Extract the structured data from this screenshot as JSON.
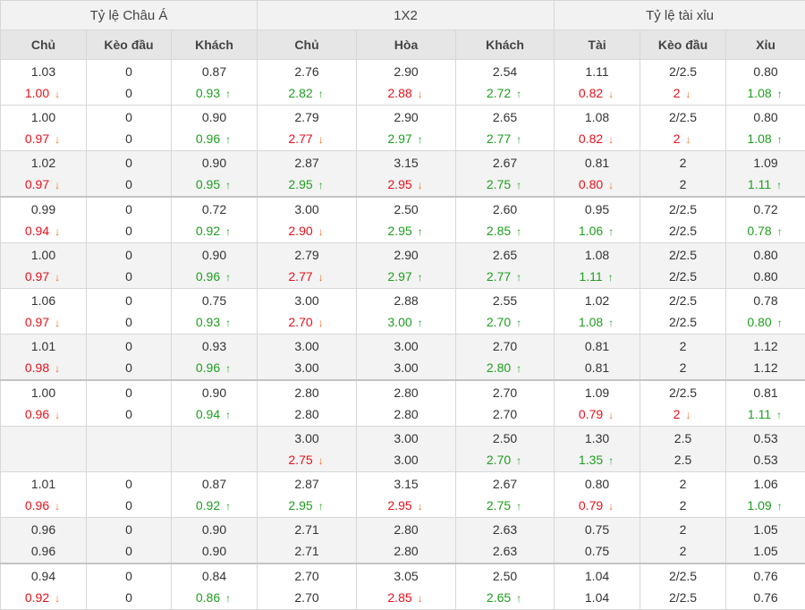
{
  "header": {
    "groups": [
      "Tỷ lệ Châu Á",
      "1X2",
      "Tỷ lệ tài xỉu"
    ],
    "columns": [
      "Chủ",
      "Kèo đầu",
      "Khách",
      "Chủ",
      "Hòa",
      "Khách",
      "Tài",
      "Kèo đầu",
      "Xỉu"
    ]
  },
  "arrows": {
    "up": "↑",
    "down": "↓"
  },
  "colors": {
    "down": "#e8101a",
    "up": "#1e9e1e",
    "shade": "#f3f3f3",
    "header": "#e6e6e6"
  },
  "rows": [
    {
      "shade": false,
      "sep": false,
      "cells": [
        [
          "1.03",
          "1.00d"
        ],
        [
          "0",
          "0"
        ],
        [
          "0.87",
          "0.93u"
        ],
        [
          "2.76",
          "2.82u"
        ],
        [
          "2.90",
          "2.88d"
        ],
        [
          "2.54",
          "2.72u"
        ],
        [
          "1.11",
          "0.82d"
        ],
        [
          "2/2.5",
          "2d"
        ],
        [
          "0.80",
          "1.08u"
        ]
      ]
    },
    {
      "shade": false,
      "sep": false,
      "cells": [
        [
          "1.00",
          "0.97d"
        ],
        [
          "0",
          "0"
        ],
        [
          "0.90",
          "0.96u"
        ],
        [
          "2.79",
          "2.77d"
        ],
        [
          "2.90",
          "2.97u"
        ],
        [
          "2.65",
          "2.77u"
        ],
        [
          "1.08",
          "0.82d"
        ],
        [
          "2/2.5",
          "2d"
        ],
        [
          "0.80",
          "1.08u"
        ]
      ]
    },
    {
      "shade": true,
      "sep": false,
      "cells": [
        [
          "1.02",
          "0.97d"
        ],
        [
          "0",
          "0"
        ],
        [
          "0.90",
          "0.95u"
        ],
        [
          "2.87",
          "2.95u"
        ],
        [
          "3.15",
          "2.95d"
        ],
        [
          "2.67",
          "2.75u"
        ],
        [
          "0.81",
          "0.80d"
        ],
        [
          "2",
          "2"
        ],
        [
          "1.09",
          "1.11u"
        ]
      ]
    },
    {
      "shade": false,
      "sep": true,
      "cells": [
        [
          "0.99",
          "0.94d"
        ],
        [
          "0",
          "0"
        ],
        [
          "0.72",
          "0.92u"
        ],
        [
          "3.00",
          "2.90d"
        ],
        [
          "2.50",
          "2.95u"
        ],
        [
          "2.60",
          "2.85u"
        ],
        [
          "0.95",
          "1.06u"
        ],
        [
          "2/2.5",
          "2/2.5"
        ],
        [
          "0.72",
          "0.78u"
        ]
      ]
    },
    {
      "shade": true,
      "sep": false,
      "cells": [
        [
          "1.00",
          "0.97d"
        ],
        [
          "0",
          "0"
        ],
        [
          "0.90",
          "0.96u"
        ],
        [
          "2.79",
          "2.77d"
        ],
        [
          "2.90",
          "2.97u"
        ],
        [
          "2.65",
          "2.77u"
        ],
        [
          "1.08",
          "1.11u"
        ],
        [
          "2/2.5",
          "2/2.5"
        ],
        [
          "0.80",
          "0.80"
        ]
      ]
    },
    {
      "shade": false,
      "sep": false,
      "cells": [
        [
          "1.06",
          "0.97d"
        ],
        [
          "0",
          "0"
        ],
        [
          "0.75",
          "0.93u"
        ],
        [
          "3.00",
          "2.70d"
        ],
        [
          "2.88",
          "3.00u"
        ],
        [
          "2.55",
          "2.70u"
        ],
        [
          "1.02",
          "1.08u"
        ],
        [
          "2/2.5",
          "2/2.5"
        ],
        [
          "0.78",
          "0.80u"
        ]
      ]
    },
    {
      "shade": true,
      "sep": false,
      "cells": [
        [
          "1.01",
          "0.98d"
        ],
        [
          "0",
          "0"
        ],
        [
          "0.93",
          "0.96u"
        ],
        [
          "3.00",
          "3.00"
        ],
        [
          "3.00",
          "3.00"
        ],
        [
          "2.70",
          "2.80u"
        ],
        [
          "0.81",
          "0.81"
        ],
        [
          "2",
          "2"
        ],
        [
          "1.12",
          "1.12"
        ]
      ]
    },
    {
      "shade": false,
      "sep": true,
      "cells": [
        [
          "1.00",
          "0.96d"
        ],
        [
          "0",
          "0"
        ],
        [
          "0.90",
          "0.94u"
        ],
        [
          "2.80",
          "2.80"
        ],
        [
          "2.80",
          "2.80"
        ],
        [
          "2.70",
          "2.70"
        ],
        [
          "1.09",
          "0.79d"
        ],
        [
          "2/2.5",
          "2d"
        ],
        [
          "0.81",
          "1.11u"
        ]
      ]
    },
    {
      "shade": true,
      "sep": false,
      "cells": [
        [],
        [],
        [],
        [
          "3.00",
          "2.75d"
        ],
        [
          "3.00",
          "3.00"
        ],
        [
          "2.50",
          "2.70u"
        ],
        [
          "1.30",
          "1.35u"
        ],
        [
          "2.5",
          "2.5"
        ],
        [
          "0.53",
          "0.53"
        ]
      ]
    },
    {
      "shade": false,
      "sep": false,
      "cells": [
        [
          "1.01",
          "0.96d"
        ],
        [
          "0",
          "0"
        ],
        [
          "0.87",
          "0.92u"
        ],
        [
          "2.87",
          "2.95u"
        ],
        [
          "3.15",
          "2.95d"
        ],
        [
          "2.67",
          "2.75u"
        ],
        [
          "0.80",
          "0.79d"
        ],
        [
          "2",
          "2"
        ],
        [
          "1.06",
          "1.09u"
        ]
      ]
    },
    {
      "shade": true,
      "sep": false,
      "cells": [
        [
          "0.96",
          "0.96"
        ],
        [
          "0",
          "0"
        ],
        [
          "0.90",
          "0.90"
        ],
        [
          "2.71",
          "2.71"
        ],
        [
          "2.80",
          "2.80"
        ],
        [
          "2.63",
          "2.63"
        ],
        [
          "0.75",
          "0.75"
        ],
        [
          "2",
          "2"
        ],
        [
          "1.05",
          "1.05"
        ]
      ]
    },
    {
      "shade": false,
      "sep": true,
      "cells": [
        [
          "0.94",
          "0.92d"
        ],
        [
          "0",
          "0"
        ],
        [
          "0.84",
          "0.86u"
        ],
        [
          "2.70",
          "2.70"
        ],
        [
          "3.05",
          "2.85d"
        ],
        [
          "2.50",
          "2.65u"
        ],
        [
          "1.04",
          "1.04"
        ],
        [
          "2/2.5",
          "2/2.5"
        ],
        [
          "0.76",
          "0.76"
        ]
      ]
    }
  ]
}
